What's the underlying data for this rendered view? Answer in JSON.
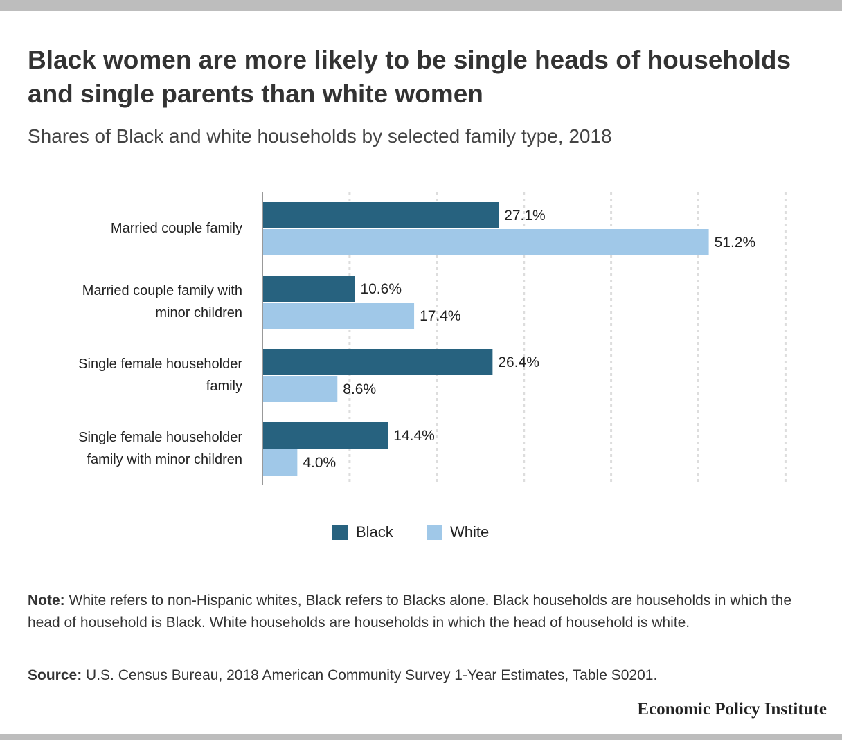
{
  "title": "Black women are more likely to be single heads of households and single parents than white women",
  "subtitle": "Shares of Black and white households by selected family type, 2018",
  "chart_data": {
    "type": "bar",
    "orientation": "horizontal",
    "categories": [
      [
        "Married couple family"
      ],
      [
        "Married couple family with",
        "minor children"
      ],
      [
        "Single female householder",
        "family"
      ],
      [
        "Single female householder",
        "family with minor children"
      ]
    ],
    "series": [
      {
        "name": "Black",
        "color": "#27627f",
        "values": [
          27.1,
          10.6,
          26.4,
          14.4
        ],
        "labels": [
          "27.1%",
          "10.6%",
          "26.4%",
          "14.4%"
        ]
      },
      {
        "name": "White",
        "color": "#a0c8e8",
        "values": [
          51.2,
          17.4,
          8.6,
          4.0
        ],
        "labels": [
          "51.2%",
          "17.4%",
          "8.6%",
          "4.0%"
        ]
      }
    ],
    "xlim": [
      0,
      60
    ],
    "xgrid_step": 10,
    "grid": true,
    "legend_position": "bottom-center",
    "xlabel": "",
    "ylabel": ""
  },
  "legend": {
    "black": "Black",
    "white": "White"
  },
  "note": {
    "label": "Note:",
    "text": " White refers to non-Hispanic whites, Black refers to Blacks alone. Black households are households in which the head of household is Black. White households are households in which the head of household is white."
  },
  "source": {
    "label": "Source:",
    "text": " U.S. Census Bureau, 2018 American Community Survey 1-Year Estimates, Table S0201."
  },
  "brand": "Economic Policy Institute",
  "colors": {
    "black": "#27627f",
    "white": "#a0c8e8",
    "bars_top": "#bdbdbd"
  }
}
